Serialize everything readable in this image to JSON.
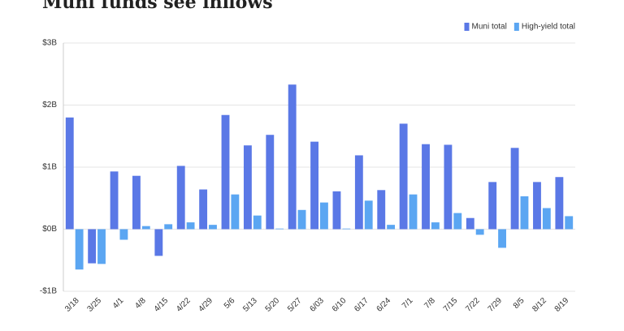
{
  "chart_data": {
    "type": "bar",
    "title": "Muni funds see inflows",
    "categories": [
      "3/18",
      "3/25",
      "4/1",
      "4/8",
      "4/15",
      "4/22",
      "4/29",
      "5/6",
      "5/13",
      "5/20",
      "5/27",
      "6/03",
      "6/10",
      "6/17",
      "6/24",
      "7/1",
      "7/8",
      "7/15",
      "7/22",
      "7/29",
      "8/5",
      "8/12",
      "8/19"
    ],
    "series": [
      {
        "name": "Muni total",
        "color": "#5a78e6",
        "values": [
          1.8,
          -0.55,
          0.93,
          0.86,
          -0.43,
          1.02,
          0.64,
          1.84,
          1.35,
          1.52,
          2.33,
          1.41,
          0.61,
          1.19,
          0.63,
          1.7,
          1.37,
          1.36,
          0.18,
          0.76,
          1.31,
          0.76,
          0.84
        ]
      },
      {
        "name": "High-yield total",
        "color": "#5ba6f2",
        "values": [
          -0.65,
          -0.56,
          -0.17,
          0.05,
          0.08,
          0.11,
          0.07,
          0.56,
          0.22,
          0.01,
          0.31,
          0.43,
          0.01,
          0.46,
          0.07,
          0.56,
          0.11,
          0.26,
          -0.09,
          -0.3,
          0.53,
          0.34,
          0.21
        ]
      }
    ],
    "ylim": [
      -1,
      3
    ],
    "yticks": [
      {
        "value": -1,
        "label": "-$1B"
      },
      {
        "value": 0,
        "label": "$0B"
      },
      {
        "value": 1,
        "label": "$1B"
      },
      {
        "value": 2,
        "label": "$2B"
      },
      {
        "value": 3,
        "label": "$3B"
      }
    ],
    "grid": true,
    "legend": "top-right"
  }
}
